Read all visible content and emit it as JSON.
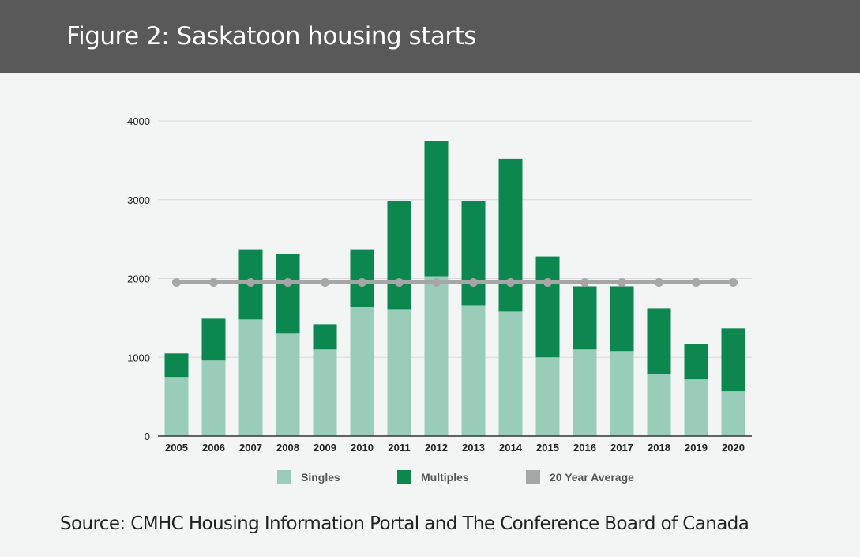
{
  "header": {
    "title": "Figure 2: Saskatoon housing starts"
  },
  "footer": {
    "source": "Source: CMHC Housing Information Portal and The Conference Board of Canada"
  },
  "chart_data": {
    "type": "bar",
    "stacked": true,
    "categories": [
      "2005",
      "2006",
      "2007",
      "2008",
      "2009",
      "2010",
      "2011",
      "2012",
      "2013",
      "2014",
      "2015",
      "2016",
      "2017",
      "2018",
      "2019",
      "2020"
    ],
    "series": [
      {
        "name": "Singles",
        "color": "#99cdb9",
        "values": [
          750,
          960,
          1480,
          1300,
          1100,
          1640,
          1610,
          2030,
          1660,
          1580,
          1000,
          1100,
          1080,
          790,
          720,
          570
        ]
      },
      {
        "name": "Multiples",
        "color": "#0d8750",
        "values": [
          300,
          530,
          890,
          1010,
          320,
          730,
          1370,
          1710,
          1320,
          1940,
          1280,
          800,
          820,
          830,
          450,
          800
        ]
      }
    ],
    "average": {
      "name": "20 Year Average",
      "color": "#a6a6a6",
      "value": 1950
    },
    "y_ticks": [
      0,
      1000,
      2000,
      3000,
      4000
    ],
    "ylim": [
      0,
      4000
    ],
    "grid": true,
    "legend_position": "bottom"
  }
}
